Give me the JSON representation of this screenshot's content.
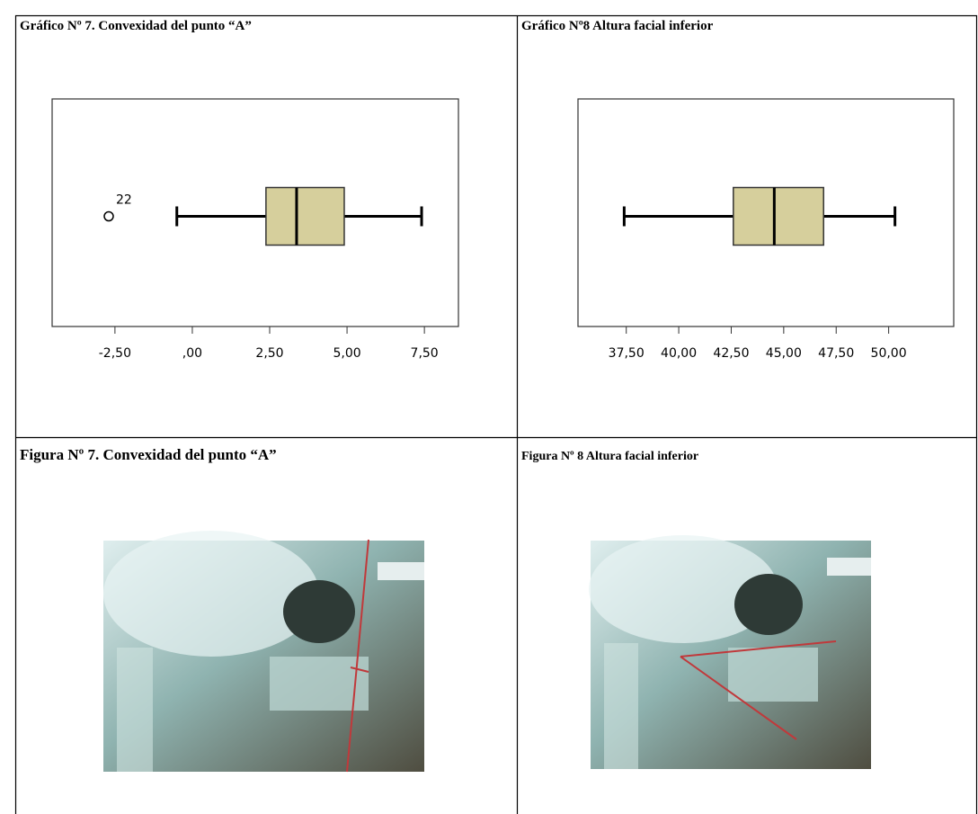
{
  "graphs": [
    {
      "title": "Gráfico Nº 7. Convexidad del punto “A”",
      "chart": {
        "type": "box",
        "min": -0.5,
        "q1": 2.38,
        "median": 3.37,
        "q3": 4.91,
        "max": 7.41,
        "outliers": [
          -2.7
        ],
        "outlier_labels": [
          "22"
        ],
        "color": "#d6cf9c",
        "xlim": [
          -4.53,
          8.6
        ],
        "xticks": [
          {
            "value": -2.5,
            "label": "-2,50"
          },
          {
            "value": 0,
            "label": ",00"
          },
          {
            "value": 2.5,
            "label": "2,50"
          },
          {
            "value": 5,
            "label": "5,00"
          },
          {
            "value": 7.5,
            "label": "7,50"
          }
        ]
      }
    },
    {
      "title": "Gráfico Nº8 Altura facial inferior",
      "chart": {
        "type": "box",
        "min": 37.4,
        "q1": 42.6,
        "median": 44.55,
        "q3": 46.9,
        "max": 50.3,
        "outliers": [],
        "outlier_labels": [],
        "color": "#d6cf9c",
        "xlim": [
          35.2,
          53.1
        ],
        "xticks": [
          {
            "value": 37.5,
            "label": "37,50"
          },
          {
            "value": 40,
            "label": "40,00"
          },
          {
            "value": 42.5,
            "label": "42,50"
          },
          {
            "value": 45,
            "label": "45,00"
          },
          {
            "value": 47.5,
            "label": "47,50"
          },
          {
            "value": 50,
            "label": "50,00"
          }
        ]
      }
    }
  ],
  "figures": [
    {
      "caption": "Figura Nº 7. Convexidad del punto “A”"
    },
    {
      "caption": "Figura Nº 8 Altura facial inferior"
    }
  ]
}
